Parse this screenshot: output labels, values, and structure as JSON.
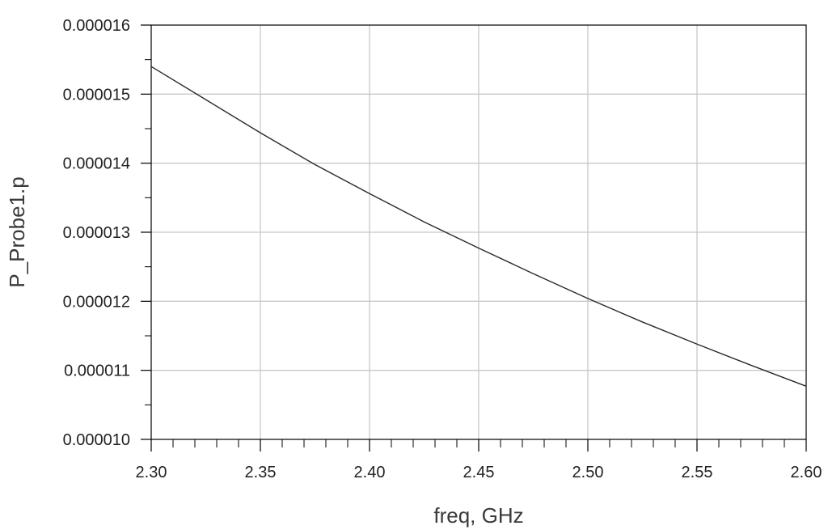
{
  "chart_data": {
    "type": "line",
    "title": "",
    "xlabel": "freq, GHz",
    "ylabel": "P_Probe1.p",
    "xlim": [
      2.3,
      2.6
    ],
    "ylim": [
      1e-05,
      1.6e-05
    ],
    "x_ticks": [
      "2.30",
      "2.35",
      "2.40",
      "2.45",
      "2.50",
      "2.55",
      "2.60"
    ],
    "y_ticks": [
      "0.000010",
      "0.000011",
      "0.000012",
      "0.000013",
      "0.000014",
      "0.000015",
      "0.000016"
    ],
    "grid": true,
    "legend": "none",
    "colors": {
      "line": "#2a2a2a",
      "grid": "#c8c8c8",
      "frame": "#000000",
      "text": "#222222"
    },
    "series": [
      {
        "x": [
          2.3,
          2.325,
          2.35,
          2.375,
          2.4,
          2.425,
          2.45,
          2.475,
          2.5,
          2.525,
          2.55,
          2.575,
          2.6
        ],
        "y": [
          1.54e-05,
          1.492e-05,
          1.444e-05,
          1.398e-05,
          1.356e-05,
          1.315e-05,
          1.277e-05,
          1.24e-05,
          1.204e-05,
          1.17e-05,
          1.138e-05,
          1.107e-05,
          1.077e-05
        ]
      }
    ]
  }
}
